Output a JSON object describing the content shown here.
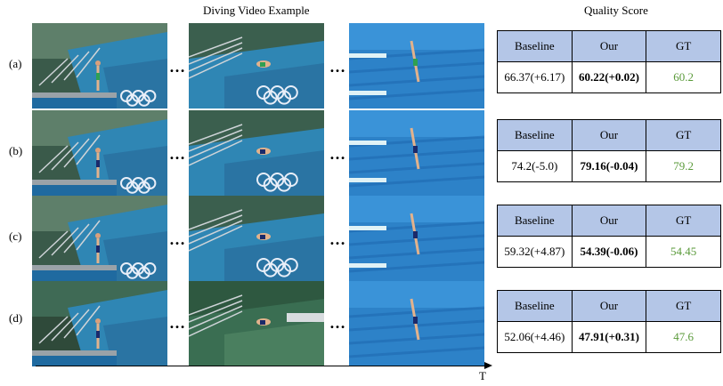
{
  "headings": {
    "video": "Diving Video Example",
    "quality": "Quality Score"
  },
  "rows": [
    {
      "label": "(a)",
      "frames": [
        "platform-with-diver",
        "diver-mid-air",
        "diver-entering-pool"
      ],
      "header": [
        "Baseline",
        "Our",
        "GT"
      ],
      "baseline": "66.37(+6.17)",
      "our": "60.22(+0.02)",
      "gt": "60.2"
    },
    {
      "label": "(b)",
      "frames": [
        "platform-with-diver",
        "diver-mid-air",
        "diver-entering-pool"
      ],
      "header": [
        "Baseline",
        "Our",
        "GT"
      ],
      "baseline": "74.2(-5.0)",
      "our": "79.16(-0.04)",
      "gt": "79.2"
    },
    {
      "label": "(c)",
      "frames": [
        "platform-with-diver",
        "diver-mid-air",
        "diver-entering-pool"
      ],
      "header": [
        "Baseline",
        "Our",
        "GT"
      ],
      "baseline": "59.32(+4.87)",
      "our": "54.39(-0.06)",
      "gt": "54.45"
    },
    {
      "label": "(d)",
      "frames": [
        "platform-with-diver",
        "diver-mid-air",
        "diver-entering-pool"
      ],
      "header": [
        "Baseline",
        "Our",
        "GT"
      ],
      "baseline": "52.06(+4.46)",
      "our": "47.91(+0.31)",
      "gt": "47.6"
    }
  ],
  "time_axis_label": "T",
  "colors": {
    "header_fill": "#b4c6e7",
    "gt_text": "#5a9a3a"
  }
}
